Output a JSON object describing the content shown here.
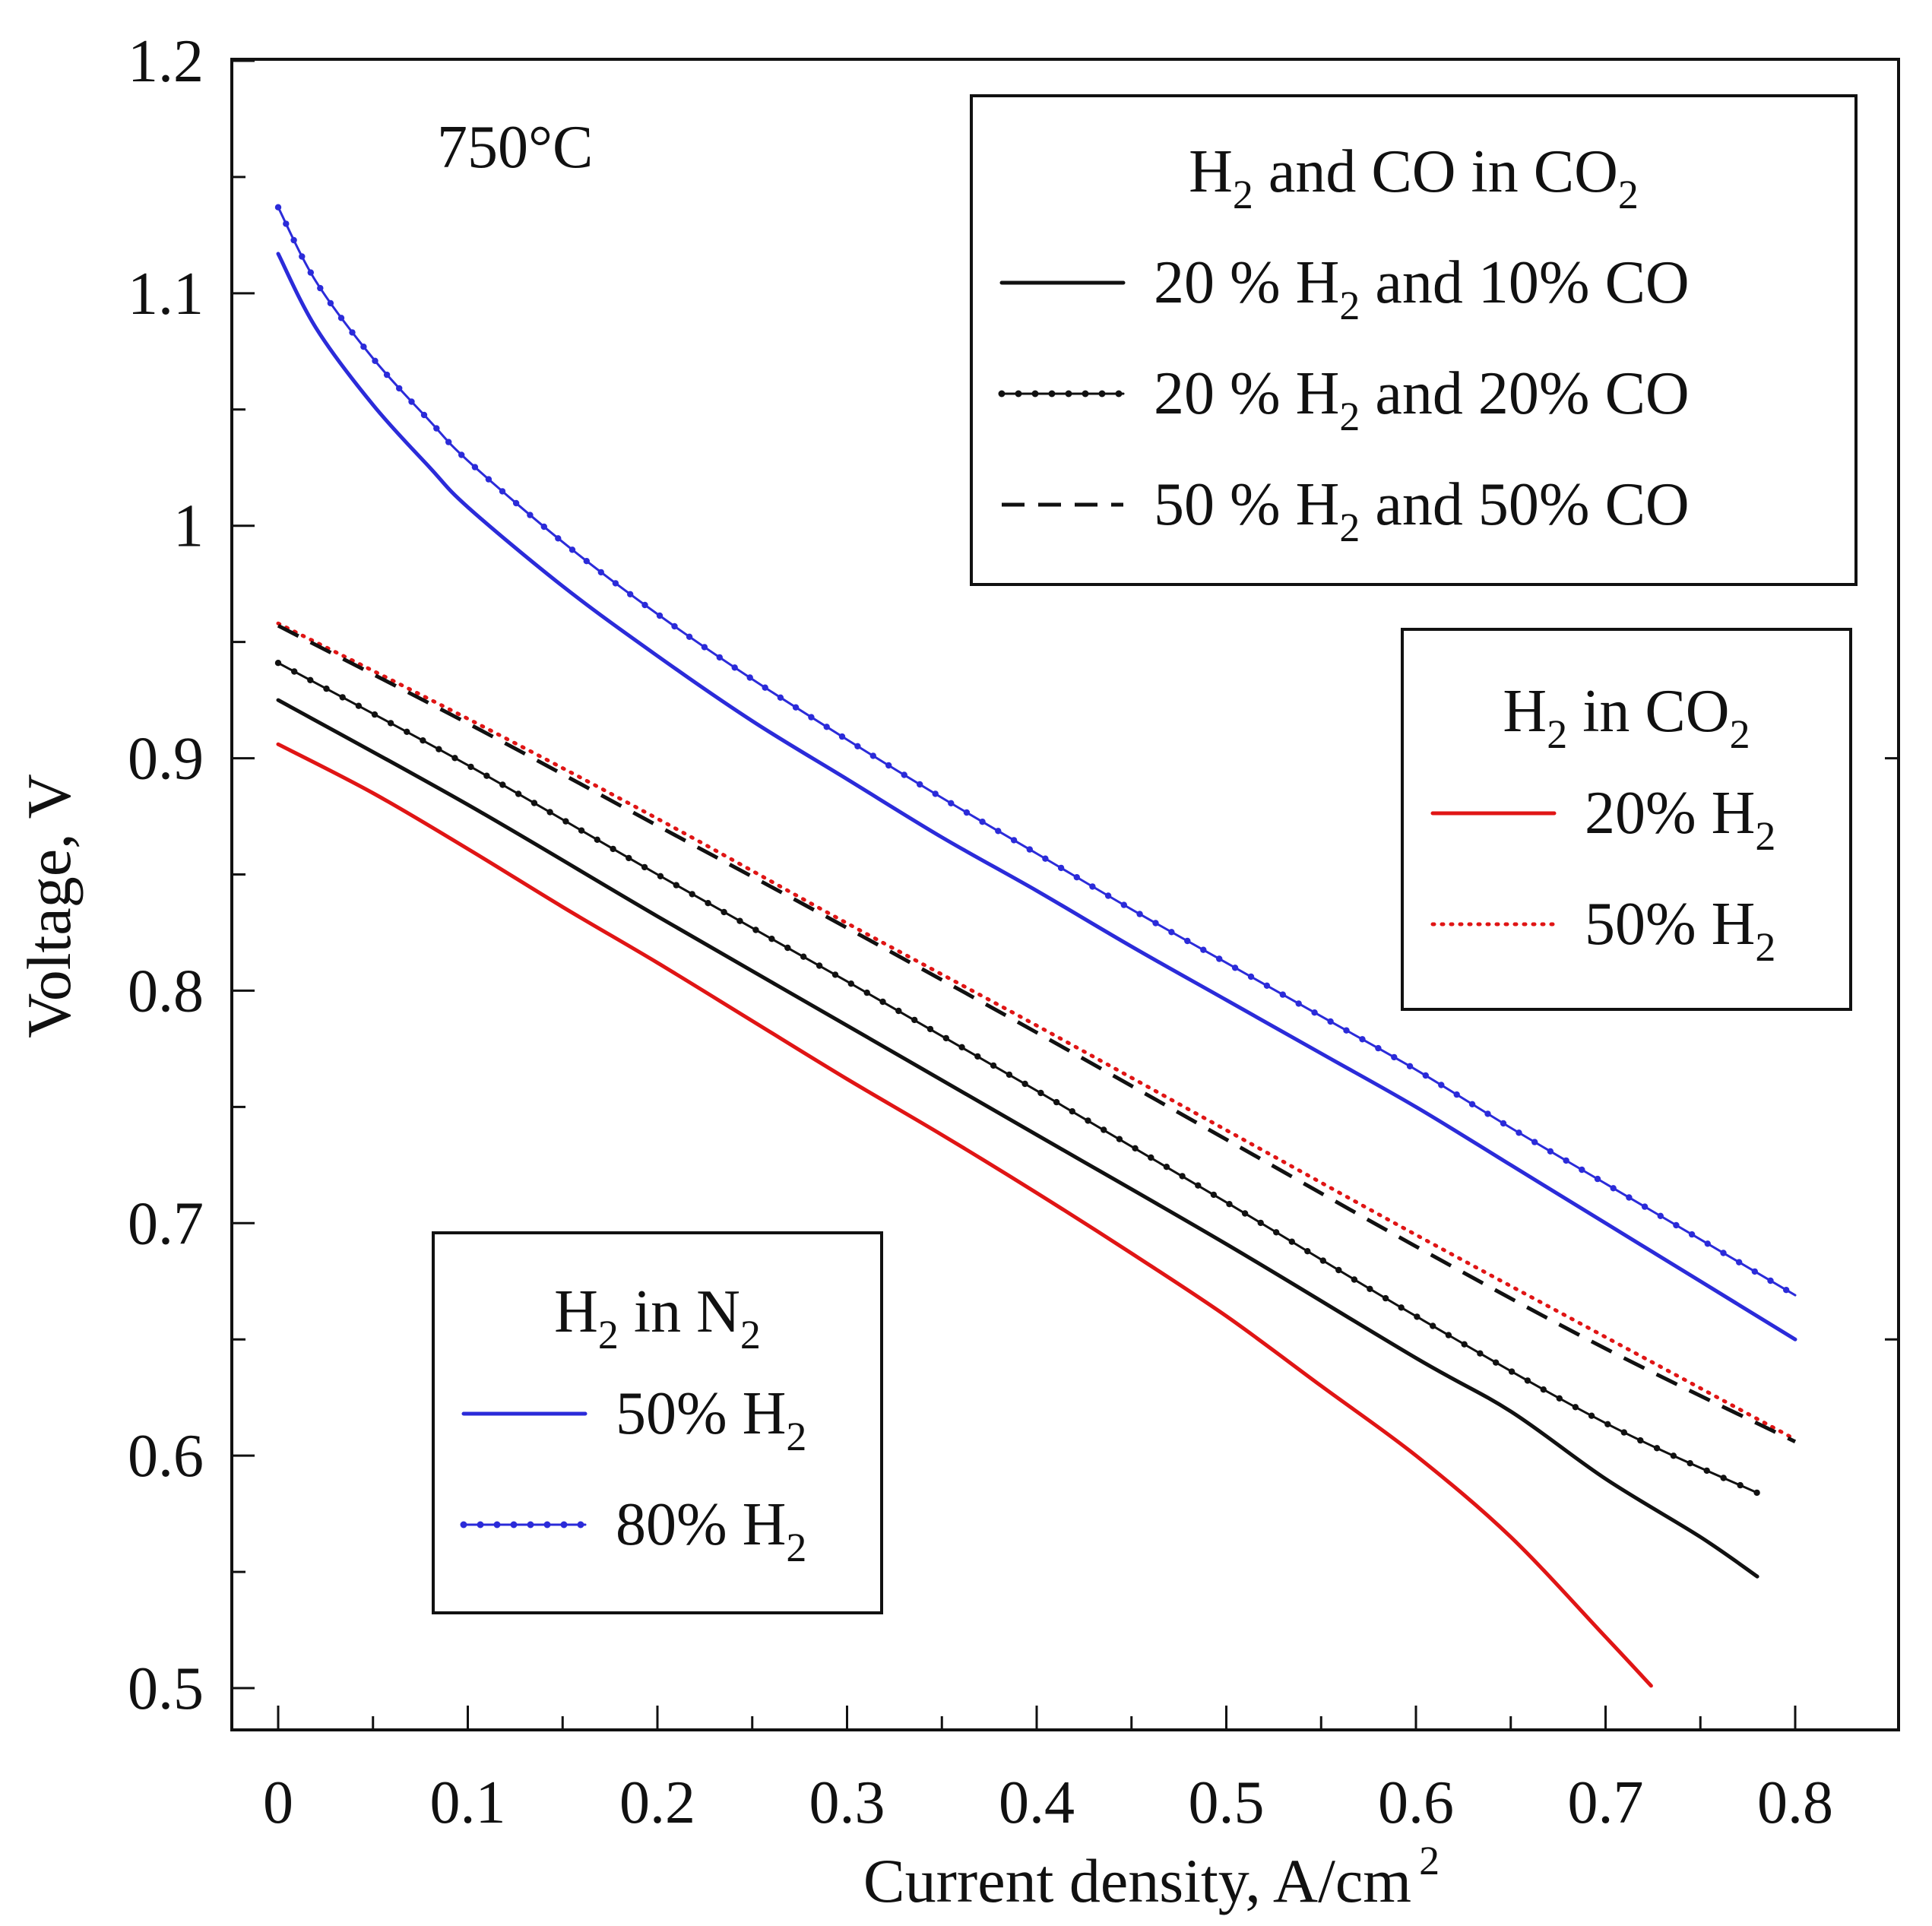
{
  "chart_data": {
    "type": "line",
    "title": "",
    "annotation": "750°C",
    "xlabel": "Current density, A/cm",
    "xlabel_superscript": "2",
    "ylabel": "Voltage, V",
    "xlim": [
      -0.025,
      0.85
    ],
    "ylim": [
      0.48,
      1.2
    ],
    "x_ticks": [
      0,
      0.1,
      0.2,
      0.3,
      0.4,
      0.5,
      0.6,
      0.7,
      0.8
    ],
    "x_tick_labels": [
      "0",
      "0.1",
      "0.2",
      "0.3",
      "0.4",
      "0.5",
      "0.6",
      "0.7",
      "0.8"
    ],
    "y_ticks": [
      0.5,
      0.6,
      0.7,
      0.8,
      0.9,
      1.0,
      1.1,
      1.2
    ],
    "y_tick_labels": [
      "0.5",
      "0.6",
      "0.7",
      "0.8",
      "0.9",
      "1",
      "1.1",
      "1.2"
    ],
    "grid": false,
    "legends": [
      {
        "id": "co-mix",
        "placement": "top-right",
        "title_parts": [
          {
            "t": "H"
          },
          {
            "t": "2",
            "sub": true
          },
          {
            "t": " and  CO in CO"
          },
          {
            "t": "2",
            "sub": true
          }
        ],
        "entries": [
          {
            "series": "20 % H2 and 10% CO",
            "parts": [
              {
                "t": "20 % H"
              },
              {
                "t": "2",
                "sub": true
              },
              {
                "t": " and 10% CO"
              }
            ]
          },
          {
            "series": "20 % H2 and 20% CO",
            "parts": [
              {
                "t": "20 % H"
              },
              {
                "t": "2",
                "sub": true
              },
              {
                "t": " and 20% CO"
              }
            ]
          },
          {
            "series": "50 % H2 and 50% CO",
            "parts": [
              {
                "t": "50 % H"
              },
              {
                "t": "2",
                "sub": true
              },
              {
                "t": " and 50% CO"
              }
            ]
          }
        ]
      },
      {
        "id": "h2-co2",
        "placement": "right",
        "title_parts": [
          {
            "t": "H"
          },
          {
            "t": "2",
            "sub": true
          },
          {
            "t": " in CO"
          },
          {
            "t": "2",
            "sub": true
          }
        ],
        "entries": [
          {
            "series": "20% H2 in CO2",
            "parts": [
              {
                "t": "20% H"
              },
              {
                "t": "2",
                "sub": true
              }
            ]
          },
          {
            "series": "50% H2 in CO2",
            "parts": [
              {
                "t": "50% H"
              },
              {
                "t": "2",
                "sub": true
              }
            ]
          }
        ]
      },
      {
        "id": "h2-n2",
        "placement": "bottom-left",
        "title_parts": [
          {
            "t": "H"
          },
          {
            "t": "2",
            "sub": true
          },
          {
            "t": " in N"
          },
          {
            "t": "2",
            "sub": true
          }
        ],
        "entries": [
          {
            "series": "50% H2 in N2",
            "parts": [
              {
                "t": "50% H"
              },
              {
                "t": "2",
                "sub": true
              }
            ]
          },
          {
            "series": "80% H2 in N2",
            "parts": [
              {
                "t": "80% H"
              },
              {
                "t": "2",
                "sub": true
              }
            ]
          }
        ]
      }
    ],
    "series": [
      {
        "name": "80% H2 in N2",
        "color": "#2b2bd9",
        "style": "dotted-line",
        "x": [
          0,
          0.02,
          0.05,
          0.08,
          0.1,
          0.15,
          0.2,
          0.25,
          0.3,
          0.35,
          0.4,
          0.45,
          0.5,
          0.55,
          0.6,
          0.65,
          0.7,
          0.75,
          0.8
        ],
        "y": [
          1.137,
          1.105,
          1.072,
          1.045,
          1.028,
          0.993,
          0.962,
          0.934,
          0.908,
          0.883,
          0.859,
          0.835,
          0.812,
          0.789,
          0.766,
          0.741,
          0.717,
          0.693,
          0.669
        ]
      },
      {
        "name": "50% H2 in N2",
        "color": "#2b2bd9",
        "style": "solid",
        "x": [
          0,
          0.02,
          0.05,
          0.08,
          0.1,
          0.15,
          0.2,
          0.25,
          0.3,
          0.35,
          0.4,
          0.45,
          0.5,
          0.55,
          0.6,
          0.65,
          0.7,
          0.75,
          0.8
        ],
        "y": [
          1.117,
          1.085,
          1.052,
          1.025,
          1.008,
          0.974,
          0.944,
          0.916,
          0.891,
          0.866,
          0.843,
          0.819,
          0.796,
          0.773,
          0.75,
          0.725,
          0.7,
          0.675,
          0.65
        ]
      },
      {
        "name": "50% H2 in CO2",
        "color": "#e01515",
        "style": "dotted",
        "x": [
          0,
          0.1,
          0.2,
          0.3,
          0.4,
          0.5,
          0.6,
          0.7,
          0.8
        ],
        "y": [
          0.958,
          0.917,
          0.874,
          0.829,
          0.785,
          0.74,
          0.695,
          0.651,
          0.607
        ]
      },
      {
        "name": "50 % H2 and 50% CO",
        "color": "#111111",
        "style": "dashed",
        "x": [
          0,
          0.1,
          0.2,
          0.3,
          0.4,
          0.5,
          0.6,
          0.7,
          0.8
        ],
        "y": [
          0.957,
          0.915,
          0.871,
          0.827,
          0.782,
          0.736,
          0.69,
          0.646,
          0.606
        ]
      },
      {
        "name": "20 % H2 and 20% CO",
        "color": "#111111",
        "style": "dotted-line",
        "x": [
          0,
          0.1,
          0.2,
          0.3,
          0.4,
          0.5,
          0.6,
          0.7,
          0.78
        ],
        "y": [
          0.941,
          0.897,
          0.85,
          0.804,
          0.757,
          0.709,
          0.66,
          0.614,
          0.584
        ]
      },
      {
        "name": "20 % H2 and 10% CO",
        "color": "#111111",
        "style": "solid",
        "x": [
          0,
          0.1,
          0.2,
          0.3,
          0.4,
          0.5,
          0.6,
          0.65,
          0.7,
          0.75,
          0.78
        ],
        "y": [
          0.925,
          0.88,
          0.832,
          0.785,
          0.738,
          0.691,
          0.642,
          0.619,
          0.59,
          0.565,
          0.548
        ]
      },
      {
        "name": "20% H2 in CO2",
        "color": "#e01515",
        "style": "solid",
        "x": [
          0,
          0.05,
          0.1,
          0.15,
          0.2,
          0.25,
          0.3,
          0.35,
          0.4,
          0.45,
          0.5,
          0.55,
          0.6,
          0.65,
          0.7,
          0.724
        ],
        "y": [
          0.906,
          0.885,
          0.861,
          0.836,
          0.812,
          0.787,
          0.762,
          0.738,
          0.713,
          0.687,
          0.66,
          0.63,
          0.6,
          0.565,
          0.522,
          0.501
        ]
      }
    ]
  }
}
